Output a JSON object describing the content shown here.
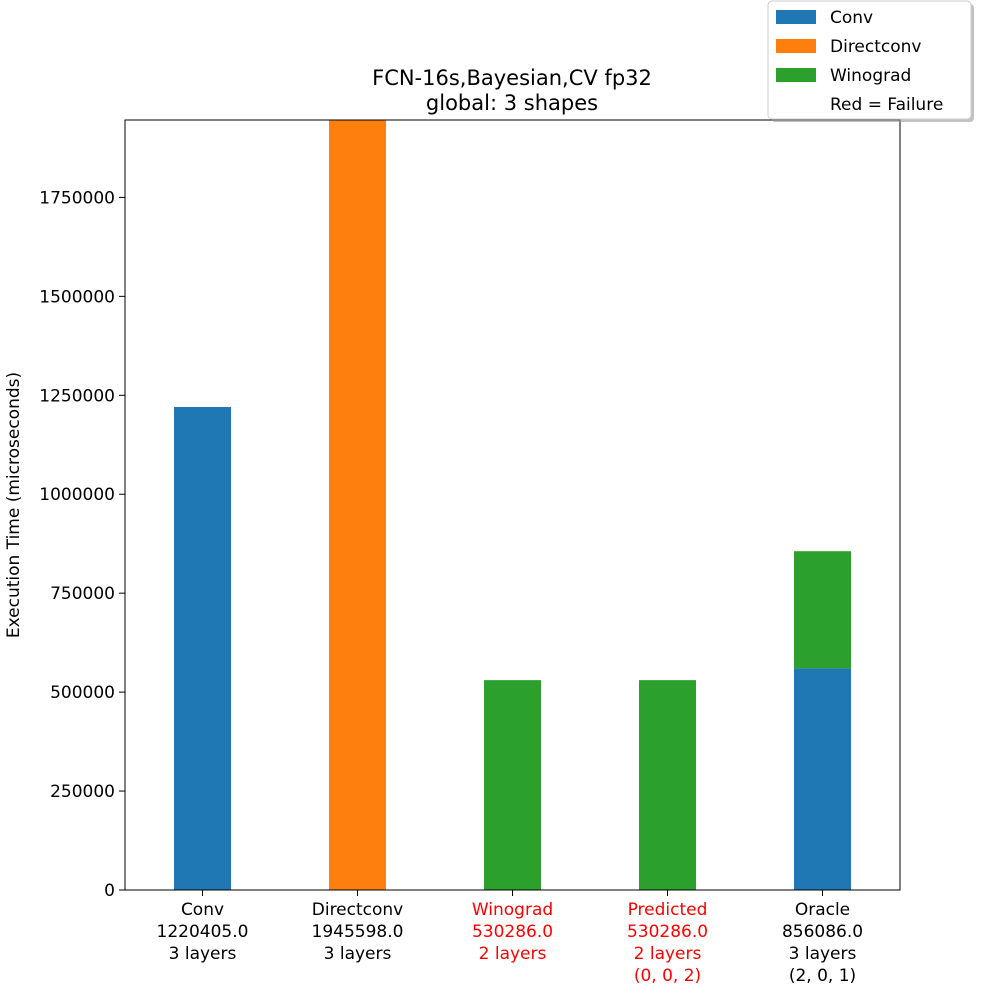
{
  "chart_data": {
    "type": "bar",
    "stacked": true,
    "title_lines": [
      "FCN-16s,Bayesian,CV fp32",
      "global: 3 shapes"
    ],
    "ylabel": "Execution Time (microseconds)",
    "ylim": [
      0,
      1945598
    ],
    "yticks": [
      {
        "value": 0,
        "label": "0"
      },
      {
        "value": 250000,
        "label": "250000"
      },
      {
        "value": 500000,
        "label": "500000"
      },
      {
        "value": 750000,
        "label": "750000"
      },
      {
        "value": 1000000,
        "label": "1000000"
      },
      {
        "value": 1250000,
        "label": "1250000"
      },
      {
        "value": 1500000,
        "label": "1500000"
      },
      {
        "value": 1750000,
        "label": "1750000"
      }
    ],
    "categories": [
      {
        "label_lines": [
          "Conv",
          "1220405.0",
          "3 layers"
        ],
        "failure": false
      },
      {
        "label_lines": [
          "Directconv",
          "1945598.0",
          "3 layers"
        ],
        "failure": false
      },
      {
        "label_lines": [
          "Winograd",
          "530286.0",
          "2 layers"
        ],
        "failure": true
      },
      {
        "label_lines": [
          "Predicted",
          "530286.0",
          "2 layers",
          "(0, 0, 2)"
        ],
        "failure": true
      },
      {
        "label_lines": [
          "Oracle",
          "856086.0",
          "3 layers",
          "(2, 0, 1)"
        ],
        "failure": false
      }
    ],
    "series": [
      {
        "name": "Conv",
        "color": "#1f77b4",
        "values": [
          1220405,
          0,
          0,
          0,
          560000
        ]
      },
      {
        "name": "Directconv",
        "color": "#ff7f0e",
        "values": [
          0,
          1945598,
          0,
          0,
          0
        ]
      },
      {
        "name": "Winograd",
        "color": "#2ca02c",
        "values": [
          0,
          0,
          530286,
          530286,
          296086
        ]
      }
    ],
    "legend": {
      "placement": "top-right",
      "entries": [
        {
          "label": "Conv",
          "color": "#1f77b4"
        },
        {
          "label": "Directconv",
          "color": "#ff7f0e"
        },
        {
          "label": "Winograd",
          "color": "#2ca02c"
        },
        {
          "label": "Red = Failure",
          "color": null
        }
      ]
    },
    "failure_color": "#ff0000",
    "text_color": "#000000",
    "grid": false
  }
}
